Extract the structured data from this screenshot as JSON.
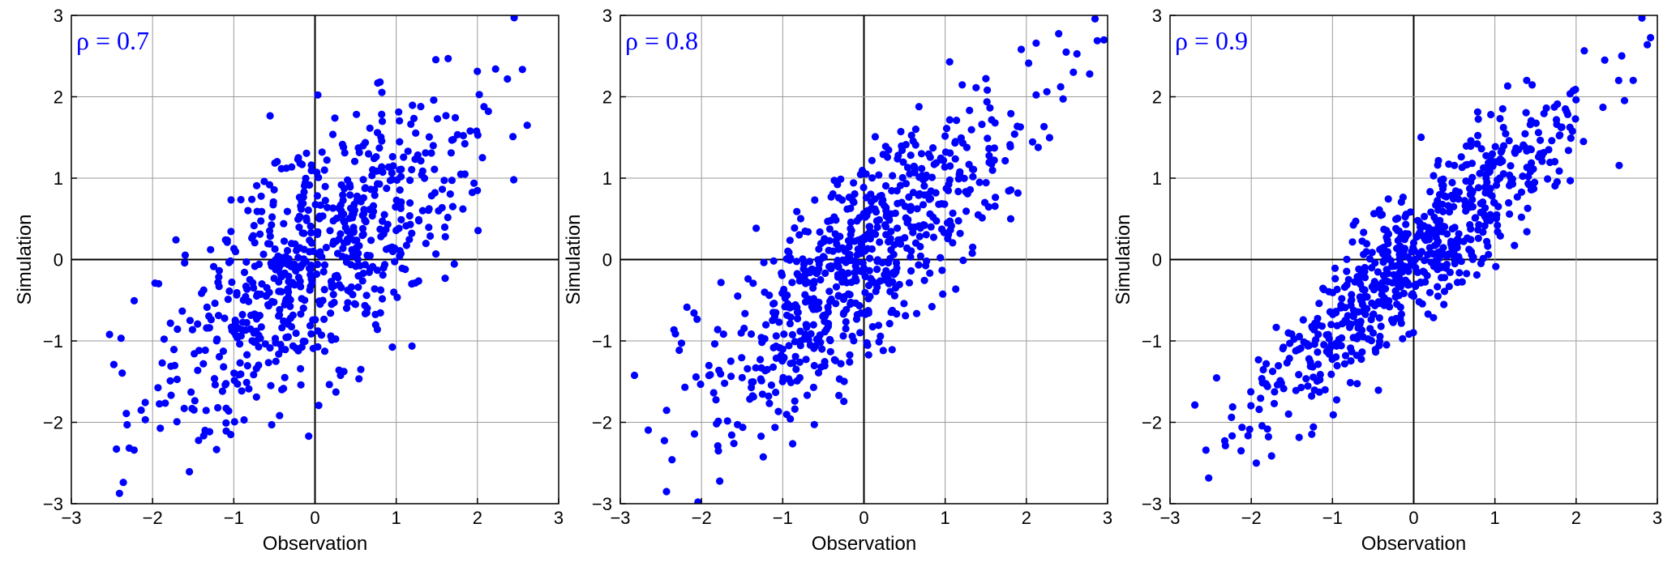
{
  "chart_data": [
    {
      "type": "scatter",
      "annotation": "ρ = 0.7",
      "rho": 0.7,
      "n_points": 700,
      "xlabel": "Observation",
      "ylabel": "Simulation",
      "xlim": [
        -3,
        3
      ],
      "ylim": [
        -3,
        3
      ],
      "ticks": [
        -3,
        -2,
        -1,
        0,
        1,
        2,
        3
      ],
      "tick_labels": [
        "−3",
        "−2",
        "−1",
        "0",
        "1",
        "2",
        "3"
      ],
      "grid": true,
      "marker_color": "#0000ff"
    },
    {
      "type": "scatter",
      "annotation": "ρ = 0.8",
      "rho": 0.8,
      "n_points": 700,
      "xlabel": "Observation",
      "ylabel": "Simulation",
      "xlim": [
        -3,
        3
      ],
      "ylim": [
        -3,
        3
      ],
      "ticks": [
        -3,
        -2,
        -1,
        0,
        1,
        2,
        3
      ],
      "tick_labels": [
        "−3",
        "−2",
        "−1",
        "0",
        "1",
        "2",
        "3"
      ],
      "grid": true,
      "marker_color": "#0000ff"
    },
    {
      "type": "scatter",
      "annotation": "ρ = 0.9",
      "rho": 0.9,
      "n_points": 700,
      "xlabel": "Observation",
      "ylabel": "Simulation",
      "xlim": [
        -3,
        3
      ],
      "ylim": [
        -3,
        3
      ],
      "ticks": [
        -3,
        -2,
        -1,
        0,
        1,
        2,
        3
      ],
      "tick_labels": [
        "−3",
        "−2",
        "−1",
        "0",
        "1",
        "2",
        "3"
      ],
      "grid": true,
      "marker_color": "#0000ff"
    }
  ]
}
